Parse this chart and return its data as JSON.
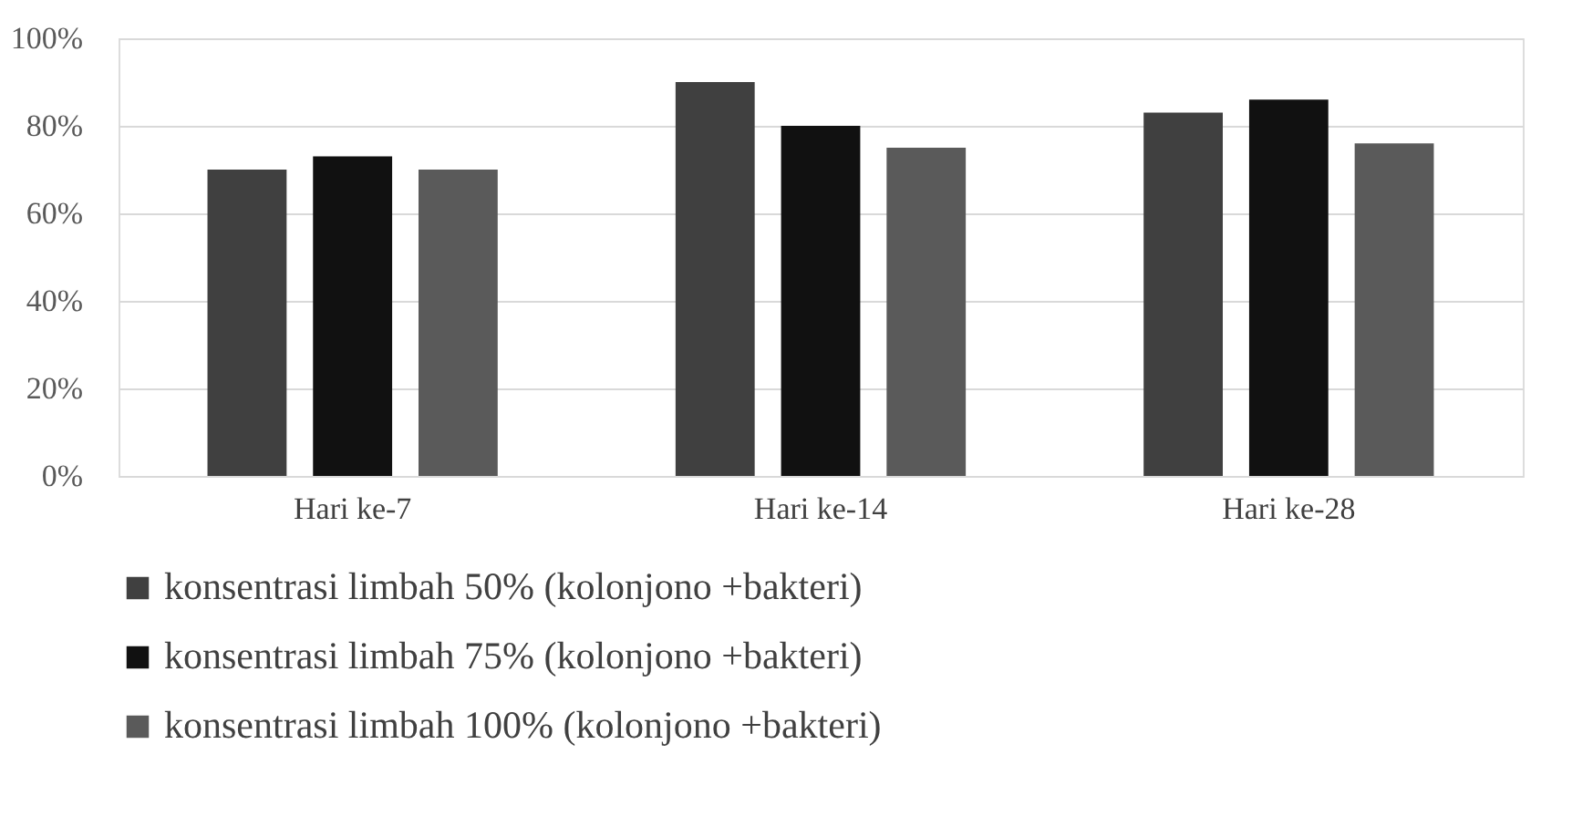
{
  "chart_data": {
    "type": "bar",
    "categories": [
      "Hari ke-7",
      "Hari ke-14",
      "Hari ke-28"
    ],
    "series": [
      {
        "name": "konsentrasi limbah 50% (kolonjono +bakteri)",
        "color": "#404040",
        "values": [
          70,
          90,
          83
        ]
      },
      {
        "name": "konsentrasi limbah 75% (kolonjono +bakteri)",
        "color": "#111111",
        "values": [
          73,
          80,
          86
        ]
      },
      {
        "name": "konsentrasi limbah 100% (kolonjono +bakteri)",
        "color": "#5a5a5a",
        "values": [
          70,
          75,
          76
        ]
      }
    ],
    "ylim": [
      0,
      100
    ],
    "yticks": [
      {
        "value": 0,
        "label": "0%"
      },
      {
        "value": 20,
        "label": "20%"
      },
      {
        "value": 40,
        "label": "40%"
      },
      {
        "value": 60,
        "label": "60%"
      },
      {
        "value": 80,
        "label": "80%"
      },
      {
        "value": 100,
        "label": "100%"
      }
    ],
    "grid": "y",
    "legend": "bottom"
  }
}
